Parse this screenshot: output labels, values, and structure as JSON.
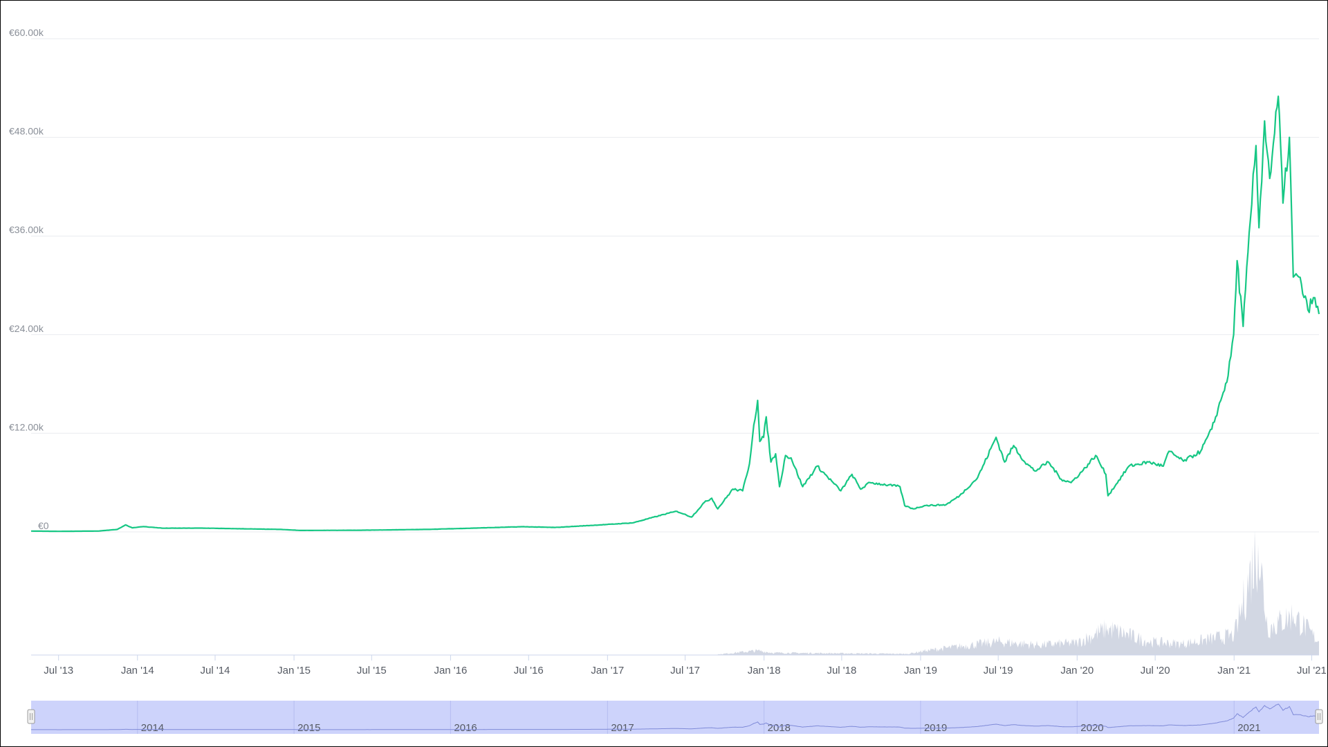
{
  "chart_data": {
    "type": "line",
    "title": "",
    "xlabel": "",
    "ylabel": "",
    "currency_symbol": "€",
    "ylim": [
      0,
      60000
    ],
    "y_ticks": [
      {
        "value": 0,
        "label": "€0"
      },
      {
        "value": 12000,
        "label": "€12.00k"
      },
      {
        "value": 24000,
        "label": "€24.00k"
      },
      {
        "value": 36000,
        "label": "€36.00k"
      },
      {
        "value": 48000,
        "label": "€48.00k"
      },
      {
        "value": 60000,
        "label": "€60.00k"
      }
    ],
    "x_range": [
      "2013-04-28",
      "2021-07-18"
    ],
    "x_ticks": [
      {
        "date": "2013-07-01",
        "label": "Jul '13"
      },
      {
        "date": "2014-01-01",
        "label": "Jan '14"
      },
      {
        "date": "2014-07-01",
        "label": "Jul '14"
      },
      {
        "date": "2015-01-01",
        "label": "Jan '15"
      },
      {
        "date": "2015-07-01",
        "label": "Jul '15"
      },
      {
        "date": "2016-01-01",
        "label": "Jan '16"
      },
      {
        "date": "2016-07-01",
        "label": "Jul '16"
      },
      {
        "date": "2017-01-01",
        "label": "Jan '17"
      },
      {
        "date": "2017-07-01",
        "label": "Jul '17"
      },
      {
        "date": "2018-01-01",
        "label": "Jan '18"
      },
      {
        "date": "2018-07-01",
        "label": "Jul '18"
      },
      {
        "date": "2019-01-01",
        "label": "Jan '19"
      },
      {
        "date": "2019-07-01",
        "label": "Jul '19"
      },
      {
        "date": "2020-01-01",
        "label": "Jan '20"
      },
      {
        "date": "2020-07-01",
        "label": "Jul '20"
      },
      {
        "date": "2021-01-01",
        "label": "Jan '21"
      },
      {
        "date": "2021-07-01",
        "label": "Jul '21"
      }
    ],
    "navigator_ticks": [
      {
        "date": "2014-01-01",
        "label": "2014"
      },
      {
        "date": "2015-01-01",
        "label": "2015"
      },
      {
        "date": "2016-01-01",
        "label": "2016"
      },
      {
        "date": "2017-01-01",
        "label": "2017"
      },
      {
        "date": "2018-01-01",
        "label": "2018"
      },
      {
        "date": "2019-01-01",
        "label": "2019"
      },
      {
        "date": "2020-01-01",
        "label": "2020"
      },
      {
        "date": "2021-01-01",
        "label": "2021"
      }
    ],
    "colors": {
      "price_line": "#16c784",
      "volume_fill": "#d2d7e3",
      "navigator_fill": "#cdd3fb",
      "navigator_line": "#7f8ad8",
      "grid": "#e9ebef"
    },
    "series": [
      {
        "kind": "price",
        "points": [
          [
            "2013-04-28",
            100
          ],
          [
            "2013-07-01",
            70
          ],
          [
            "2013-10-01",
            100
          ],
          [
            "2013-11-15",
            300
          ],
          [
            "2013-12-04",
            850
          ],
          [
            "2013-12-20",
            500
          ],
          [
            "2014-01-15",
            650
          ],
          [
            "2014-03-01",
            450
          ],
          [
            "2014-06-01",
            460
          ],
          [
            "2014-09-01",
            380
          ],
          [
            "2014-12-01",
            300
          ],
          [
            "2015-01-15",
            180
          ],
          [
            "2015-06-01",
            200
          ],
          [
            "2015-11-05",
            300
          ],
          [
            "2016-01-01",
            380
          ],
          [
            "2016-06-17",
            630
          ],
          [
            "2016-09-01",
            540
          ],
          [
            "2016-12-31",
            900
          ],
          [
            "2017-03-01",
            1100
          ],
          [
            "2017-05-25",
            2300
          ],
          [
            "2017-06-12",
            2500
          ],
          [
            "2017-07-16",
            1800
          ],
          [
            "2017-08-15",
            3600
          ],
          [
            "2017-09-01",
            4100
          ],
          [
            "2017-09-15",
            2800
          ],
          [
            "2017-10-20",
            5200
          ],
          [
            "2017-11-12",
            5000
          ],
          [
            "2017-11-28",
            8300
          ],
          [
            "2017-12-08",
            13000
          ],
          [
            "2017-12-17",
            16000
          ],
          [
            "2017-12-22",
            11000
          ],
          [
            "2017-12-31",
            11500
          ],
          [
            "2018-01-06",
            14000
          ],
          [
            "2018-01-17",
            8500
          ],
          [
            "2018-01-28",
            9500
          ],
          [
            "2018-02-06",
            5500
          ],
          [
            "2018-02-20",
            9300
          ],
          [
            "2018-03-05",
            9000
          ],
          [
            "2018-04-01",
            5500
          ],
          [
            "2018-05-05",
            8000
          ],
          [
            "2018-06-29",
            5000
          ],
          [
            "2018-07-25",
            7000
          ],
          [
            "2018-08-14",
            5200
          ],
          [
            "2018-09-05",
            6000
          ],
          [
            "2018-11-14",
            5500
          ],
          [
            "2018-11-25",
            3200
          ],
          [
            "2018-12-15",
            2800
          ],
          [
            "2019-01-10",
            3200
          ],
          [
            "2019-03-01",
            3300
          ],
          [
            "2019-04-02",
            4400
          ],
          [
            "2019-05-14",
            6600
          ],
          [
            "2019-06-26",
            11500
          ],
          [
            "2019-07-16",
            8500
          ],
          [
            "2019-08-06",
            10500
          ],
          [
            "2019-09-01",
            8500
          ],
          [
            "2019-09-25",
            7400
          ],
          [
            "2019-10-26",
            8500
          ],
          [
            "2019-11-25",
            6400
          ],
          [
            "2019-12-18",
            6000
          ],
          [
            "2020-01-15",
            7500
          ],
          [
            "2020-02-13",
            9300
          ],
          [
            "2020-03-08",
            7000
          ],
          [
            "2020-03-13",
            4400
          ],
          [
            "2020-04-01",
            5800
          ],
          [
            "2020-05-01",
            8000
          ],
          [
            "2020-06-15",
            8500
          ],
          [
            "2020-07-20",
            8000
          ],
          [
            "2020-08-02",
            9800
          ],
          [
            "2020-09-05",
            8600
          ],
          [
            "2020-10-15",
            9800
          ],
          [
            "2020-11-10",
            12500
          ],
          [
            "2020-12-01",
            16000
          ],
          [
            "2020-12-18",
            19000
          ],
          [
            "2020-12-31",
            24000
          ],
          [
            "2021-01-08",
            33000
          ],
          [
            "2021-01-22",
            25000
          ],
          [
            "2021-02-08",
            38000
          ],
          [
            "2021-02-21",
            47000
          ],
          [
            "2021-02-28",
            37000
          ],
          [
            "2021-03-13",
            50000
          ],
          [
            "2021-03-25",
            43000
          ],
          [
            "2021-04-14",
            53000
          ],
          [
            "2021-04-25",
            40000
          ],
          [
            "2021-05-10",
            48000
          ],
          [
            "2021-05-19",
            31000
          ],
          [
            "2021-06-01",
            31000
          ],
          [
            "2021-06-22",
            27000
          ],
          [
            "2021-07-05",
            28500
          ],
          [
            "2021-07-18",
            26500
          ]
        ]
      },
      {
        "kind": "volume",
        "points": [
          [
            "2013-04-28",
            0
          ],
          [
            "2017-09-01",
            0
          ],
          [
            "2017-12-17",
            0.04
          ],
          [
            "2018-01-20",
            0.02
          ],
          [
            "2018-12-01",
            0.01
          ],
          [
            "2019-01-15",
            0.04
          ],
          [
            "2019-07-01",
            0.12
          ],
          [
            "2019-10-01",
            0.09
          ],
          [
            "2020-01-01",
            0.11
          ],
          [
            "2020-03-12",
            0.24
          ],
          [
            "2020-06-15",
            0.12
          ],
          [
            "2020-09-01",
            0.1
          ],
          [
            "2021-01-01",
            0.18
          ],
          [
            "2021-01-11",
            0.3
          ],
          [
            "2021-02-26",
            1.0
          ],
          [
            "2021-03-20",
            0.24
          ],
          [
            "2021-05-19",
            0.36
          ],
          [
            "2021-07-18",
            0.12
          ]
        ]
      }
    ]
  }
}
